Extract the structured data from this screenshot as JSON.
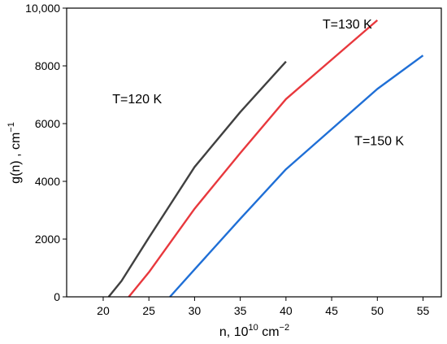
{
  "chart_data": {
    "type": "line",
    "xlabel": {
      "base": "n, 10",
      "exp": "10",
      "unit": " cm",
      "unit_exp": "−2"
    },
    "ylabel": {
      "base": "g(n) , cm",
      "exp": "−1"
    },
    "xlim": [
      16,
      57
    ],
    "ylim": [
      0,
      10000
    ],
    "xticks": [
      20,
      25,
      30,
      35,
      40,
      45,
      50,
      55
    ],
    "yticks": [
      {
        "value": 0,
        "label": "0"
      },
      {
        "value": 2000,
        "label": "2000"
      },
      {
        "value": 4000,
        "label": "4000"
      },
      {
        "value": 6000,
        "label": "6000"
      },
      {
        "value": 8000,
        "label": "8000"
      },
      {
        "value": 10000,
        "label": "10,000"
      }
    ],
    "grid": false,
    "series": [
      {
        "name": "T=120 K",
        "color": "#404040",
        "label_at": [
          21,
          6700
        ],
        "points": [
          [
            20.6,
            0
          ],
          [
            22,
            550
          ],
          [
            25,
            2050
          ],
          [
            30,
            4500
          ],
          [
            35,
            6400
          ],
          [
            40,
            8150
          ]
        ]
      },
      {
        "name": "T=130 K",
        "color": "#e8383d",
        "label_at": [
          44,
          9300
        ],
        "points": [
          [
            22.8,
            0
          ],
          [
            25,
            850
          ],
          [
            30,
            3050
          ],
          [
            35,
            4980
          ],
          [
            40,
            6850
          ],
          [
            50,
            9580
          ]
        ]
      },
      {
        "name": "T=150 K",
        "color": "#1f6fd6",
        "label_at": [
          47.5,
          5250
        ],
        "points": [
          [
            27.3,
            0
          ],
          [
            30,
            950
          ],
          [
            35,
            2700
          ],
          [
            40,
            4420
          ],
          [
            50,
            7200
          ],
          [
            55,
            8360
          ]
        ]
      }
    ]
  }
}
